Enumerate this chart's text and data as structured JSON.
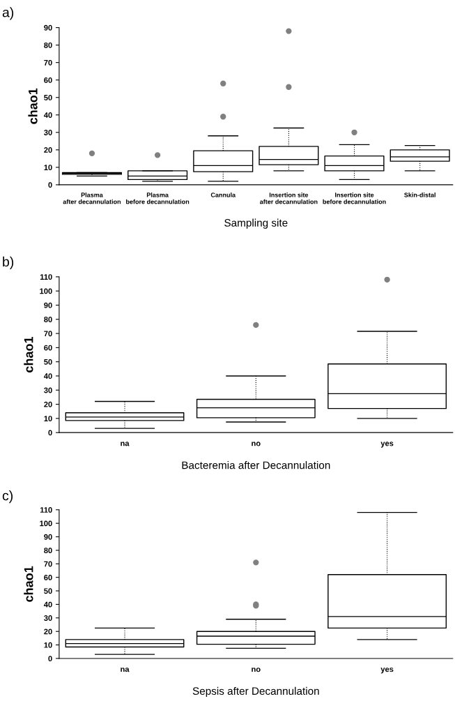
{
  "chart_data": [
    {
      "type": "box",
      "annotations": [
        "a)"
      ],
      "xlabel": "Sampling site",
      "ylabel": "chao1",
      "marker": "circle",
      "categories": [
        "Plasma\nafter decannulation",
        "Plasma\nbefore decannulation",
        "Cannula",
        "Insertion site\nafter decannulation",
        "Insertion site\nbefore decannulation",
        "Skin-distal"
      ],
      "boxes": [
        {
          "low": 5,
          "q1": 6,
          "median": 6.5,
          "q3": 7,
          "high": 7,
          "outliers": [
            18
          ]
        },
        {
          "low": 2,
          "q1": 3,
          "median": 5,
          "q3": 8,
          "high": 8,
          "outliers": [
            17
          ]
        },
        {
          "low": 2,
          "q1": 7.5,
          "median": 11,
          "q3": 19.5,
          "high": 28,
          "outliers": [
            39,
            58
          ]
        },
        {
          "low": 8,
          "q1": 11.5,
          "median": 14.5,
          "q3": 22,
          "high": 32.5,
          "outliers": [
            56,
            88
          ]
        },
        {
          "low": 3,
          "q1": 8,
          "median": 11,
          "q3": 16.5,
          "high": 23,
          "outliers": [
            30
          ]
        },
        {
          "low": 8,
          "q1": 13.5,
          "median": 16,
          "q3": 20,
          "high": 22.5
        }
      ],
      "ylim": [
        0,
        90
      ],
      "yticks": [
        0,
        10,
        20,
        30,
        40,
        50,
        60,
        70,
        80,
        90
      ]
    },
    {
      "type": "box",
      "annotations": [
        "b)"
      ],
      "xlabel": "Bacteremia after Decannulation",
      "ylabel": "chao1",
      "marker": "circle",
      "categories": [
        "na",
        "no",
        "yes"
      ],
      "boxes": [
        {
          "low": 3,
          "q1": 8.5,
          "median": 11,
          "q3": 14,
          "high": 22
        },
        {
          "low": 7.5,
          "q1": 10.5,
          "median": 17.5,
          "q3": 23.5,
          "high": 40,
          "outliers": [
            76
          ]
        },
        {
          "low": 10,
          "q1": 17,
          "median": 27.5,
          "q3": 48.5,
          "high": 71.5,
          "outliers": [
            108
          ]
        }
      ],
      "ylim": [
        0,
        110
      ],
      "yticks": [
        0,
        10,
        20,
        30,
        40,
        50,
        60,
        70,
        80,
        90,
        100,
        110
      ]
    },
    {
      "type": "box",
      "annotations": [
        "c)"
      ],
      "xlabel": "Sepsis after Decannulation",
      "ylabel": "chao1",
      "marker": "circle",
      "categories": [
        "na",
        "no",
        "yes"
      ],
      "boxes": [
        {
          "low": 3,
          "q1": 8.5,
          "median": 11,
          "q3": 14,
          "high": 22.5
        },
        {
          "low": 7.5,
          "q1": 10.5,
          "median": 16.5,
          "q3": 20,
          "high": 29,
          "outliers": [
            39,
            40,
            71
          ]
        },
        {
          "low": 14,
          "q1": 22.5,
          "median": 31,
          "q3": 62,
          "high": 108
        }
      ],
      "ylim": [
        0,
        110
      ],
      "yticks": [
        0,
        10,
        20,
        30,
        40,
        50,
        60,
        70,
        80,
        90,
        100,
        110
      ]
    }
  ]
}
